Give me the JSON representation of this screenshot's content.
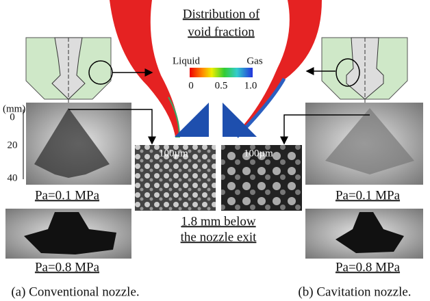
{
  "title": {
    "line1": "Distribution of",
    "line2": "void fraction"
  },
  "legend": {
    "low": "Liquid",
    "high": "Gas",
    "ticks": [
      "0",
      "0.5",
      "1.0"
    ]
  },
  "scale": {
    "unit": "(mm)",
    "ticks": [
      "0",
      "20",
      "40"
    ]
  },
  "left": {
    "top_label": "Pa=0.1 MPa",
    "bottom_label": "Pa=0.8 MPa",
    "micro_scale": "100µm",
    "caption": "(a) Conventional nozzle."
  },
  "right": {
    "top_label": "Pa=0.1 MPa",
    "bottom_label": "Pa=0.8 MPa",
    "micro_scale": "100µm",
    "caption": "(b) Cavitation nozzle."
  },
  "center": {
    "line1": "1.8 mm below",
    "line2": "the nozzle exit"
  }
}
